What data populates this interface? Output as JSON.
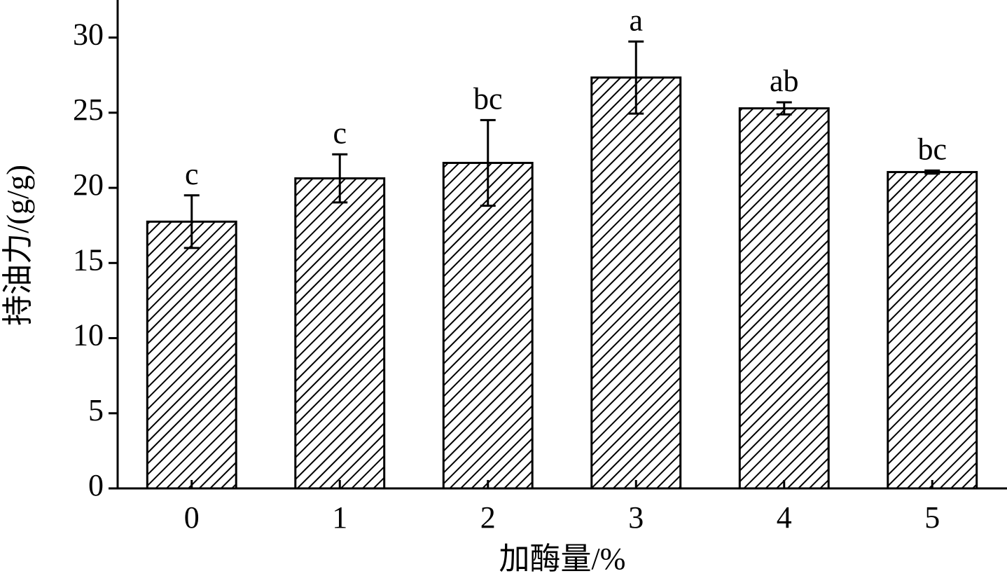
{
  "chart_data": {
    "type": "bar",
    "x_label": "加酶量/%",
    "y_label": "持油力/(g/g)",
    "categories": [
      "0",
      "1",
      "2",
      "3",
      "4",
      "5"
    ],
    "values": [
      17.75,
      20.63,
      21.66,
      27.34,
      25.29,
      21.05
    ],
    "errors": [
      1.75,
      1.6,
      2.85,
      2.4,
      0.4,
      0.1
    ],
    "significance": [
      "c",
      "c",
      "bc",
      "a",
      "ab",
      "bc"
    ],
    "color": "#000000",
    "ylim": [
      0,
      32.5
    ],
    "yticks": [
      0,
      5,
      10,
      15,
      20,
      25,
      30
    ]
  }
}
